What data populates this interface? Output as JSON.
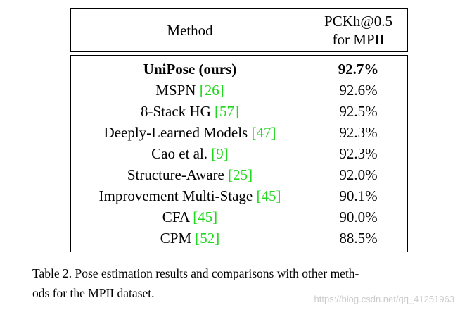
{
  "table": {
    "header": {
      "method": "Method",
      "score_line1": "PCKh@0.5",
      "score_line2": "for MPII"
    },
    "rows": [
      {
        "method": "UniPose (ours)",
        "ref": "",
        "score": "92.7%",
        "bold": true
      },
      {
        "method": "MSPN ",
        "ref": "[26]",
        "score": "92.6%",
        "bold": false
      },
      {
        "method": "8-Stack HG ",
        "ref": "[57]",
        "score": "92.5%",
        "bold": false
      },
      {
        "method": "Deeply-Learned Models ",
        "ref": "[47]",
        "score": "92.3%",
        "bold": false
      },
      {
        "method": "Cao et al. ",
        "ref": "[9]",
        "score": "92.3%",
        "bold": false
      },
      {
        "method": "Structure-Aware ",
        "ref": "[25]",
        "score": "92.0%",
        "bold": false
      },
      {
        "method": "Improvement Multi-Stage ",
        "ref": "[45]",
        "score": "90.1%",
        "bold": false
      },
      {
        "method": "CFA ",
        "ref": "[45]",
        "score": "90.0%",
        "bold": false
      },
      {
        "method": "CPM ",
        "ref": "[52]",
        "score": "88.5%",
        "bold": false
      }
    ]
  },
  "caption": {
    "line1": "Table 2. Pose estimation results and comparisons with other meth-",
    "line2": "ods for the MPII dataset."
  },
  "watermark": "https://blog.csdn.net/qq_41251963",
  "colors": {
    "reference_link": "#1fd81f"
  }
}
